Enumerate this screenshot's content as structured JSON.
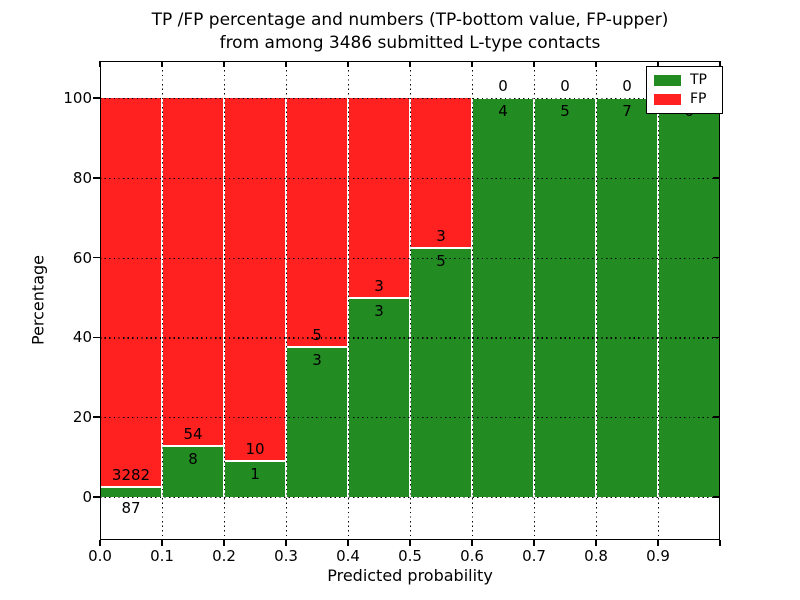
{
  "title": {
    "line1": "TP /FP percentage and numbers (TP-bottom value, FP-upper)",
    "line2": "from among 3486 submitted L-type contacts"
  },
  "colors": {
    "tp_green": "#228B22",
    "fp_red": "#FF2020",
    "axis": "#000000"
  },
  "legend": {
    "items": [
      {
        "label": "TP",
        "color": "tp_green"
      },
      {
        "label": "FP",
        "color": "fp_red"
      }
    ]
  },
  "chart_data": {
    "type": "bar",
    "stacked": true,
    "normalized_to_percent": true,
    "title": "TP /FP percentage and numbers (TP-bottom value, FP-upper) from among 3486 submitted L-type contacts",
    "xlabel": "Predicted probability",
    "ylabel": "Percentage",
    "total_contacts": 3486,
    "bin_width": 0.1,
    "bin_starts": [
      0.0,
      0.1,
      0.2,
      0.3,
      0.4,
      0.5,
      0.6,
      0.7,
      0.8,
      0.9
    ],
    "x_tick_labels": [
      "0.0",
      "0.1",
      "0.2",
      "0.3",
      "0.4",
      "0.5",
      "0.6",
      "0.7",
      "0.8",
      "0.9"
    ],
    "y_ticks": [
      0,
      20,
      40,
      60,
      80,
      100
    ],
    "y_tick_labels": [
      "0",
      "20",
      "40",
      "60",
      "80",
      "100"
    ],
    "xlim": [
      0.0,
      1.0
    ],
    "ylim": [
      -10.8,
      109.3
    ],
    "grid": "dotted-black",
    "legend_position": "upper-right",
    "series": [
      {
        "name": "TP",
        "counts": [
          87,
          8,
          1,
          3,
          3,
          5,
          4,
          5,
          7,
          6
        ]
      },
      {
        "name": "FP",
        "counts": [
          3282,
          54,
          10,
          5,
          3,
          3,
          0,
          0,
          0,
          0
        ]
      }
    ],
    "tp_percent_of_bin": [
      2.58,
      12.9,
      9.09,
      37.5,
      50.0,
      62.5,
      100.0,
      100.0,
      100.0,
      100.0
    ]
  }
}
